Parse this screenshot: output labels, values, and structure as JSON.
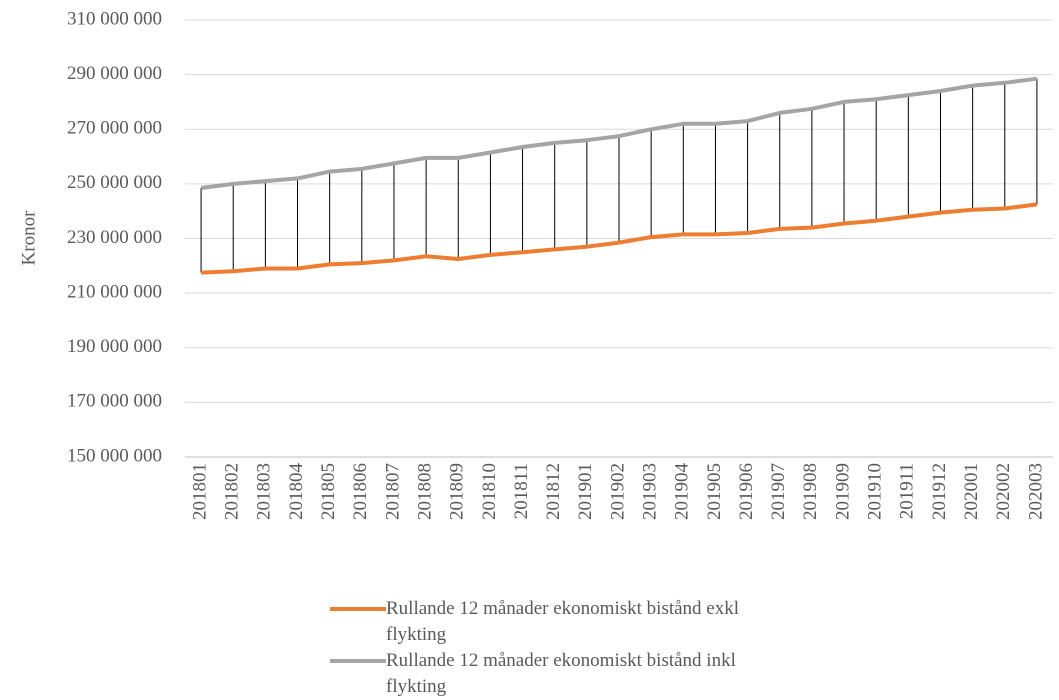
{
  "chart_data": {
    "type": "line",
    "y_label": "Kronor",
    "categories": [
      "201801",
      "201802",
      "201803",
      "201804",
      "201805",
      "201806",
      "201807",
      "201808",
      "201809",
      "201810",
      "201811",
      "201812",
      "201901",
      "201902",
      "201903",
      "201904",
      "201905",
      "201906",
      "201907",
      "201908",
      "201909",
      "201910",
      "201911",
      "201912",
      "202001",
      "202002",
      "202003"
    ],
    "series": [
      {
        "name": "Rullande 12 månader ekonomiskt bistånd exkl flykting",
        "color": "#ed7d31",
        "values": [
          217500000,
          218000000,
          219000000,
          219000000,
          220500000,
          221000000,
          222000000,
          223500000,
          222500000,
          224000000,
          225000000,
          226000000,
          227000000,
          228500000,
          230500000,
          231500000,
          231500000,
          232000000,
          233500000,
          234000000,
          235500000,
          236500000,
          238000000,
          239500000,
          240500000,
          241000000,
          242500000
        ]
      },
      {
        "name": "Rullande 12 månader ekonomiskt bistånd inkl flykting",
        "color": "#a5a5a5",
        "values": [
          248500000,
          250000000,
          251000000,
          252000000,
          254500000,
          255500000,
          257500000,
          259500000,
          259500000,
          261500000,
          263500000,
          265000000,
          266000000,
          267500000,
          270000000,
          272000000,
          272000000,
          273000000,
          276000000,
          277500000,
          280000000,
          281000000,
          282500000,
          284000000,
          286000000,
          287000000,
          288500000
        ]
      }
    ],
    "ylim": [
      150000000,
      310000000
    ],
    "yticks": [
      {
        "value": 150000000,
        "label": "150 000 000"
      },
      {
        "value": 170000000,
        "label": "170 000 000"
      },
      {
        "value": 190000000,
        "label": "190 000 000"
      },
      {
        "value": 210000000,
        "label": "210 000 000"
      },
      {
        "value": 230000000,
        "label": "230 000 000"
      },
      {
        "value": 250000000,
        "label": "250 000 000"
      },
      {
        "value": 270000000,
        "label": "270 000 000"
      },
      {
        "value": 290000000,
        "label": "290 000 000"
      },
      {
        "value": 310000000,
        "label": "310 000 000"
      }
    ],
    "grid": true,
    "high_low_lines": true,
    "legend": "bottom"
  }
}
